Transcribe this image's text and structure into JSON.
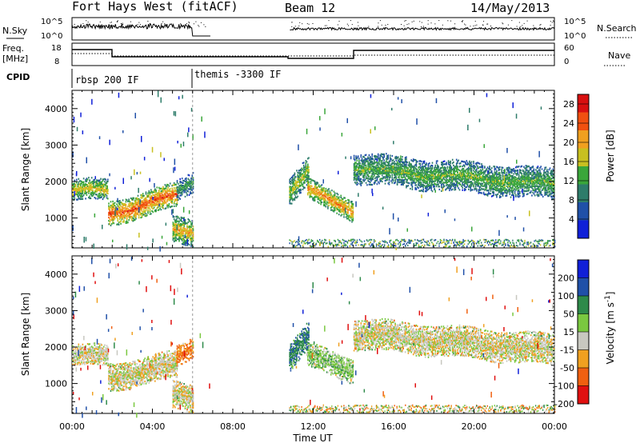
{
  "header": {
    "site": "Fort Hays West (fitACF)",
    "beam": "Beam 12",
    "date": "14/May/2013"
  },
  "top_panels": {
    "nsky_label": "N.Sky",
    "nsearch_label": "N.Search",
    "nsky_ticks": [
      "10^5",
      "10^0"
    ],
    "nsearch_ticks": [
      "10^5",
      "10^0"
    ],
    "freq_label_1": "Freq.",
    "freq_label_2": "[MHz]",
    "freq_ticks": [
      "18",
      "8"
    ],
    "nave_label": "Nave",
    "nave_ticks": [
      "60",
      "0"
    ],
    "cpid_label": "CPID",
    "cpid_segments": [
      {
        "label": "rbsp 200 IF",
        "start_hour": 0
      },
      {
        "label": "themis -3300 IF",
        "start_hour": 6
      }
    ]
  },
  "chart_data": [
    {
      "type": "heatmap",
      "title": "",
      "xlabel": "Time UT",
      "ylabel": "Slant Range [km]",
      "xlim": [
        0,
        24
      ],
      "ylim": [
        180,
        4500
      ],
      "x_tick_labels": [
        "00:00",
        "04:00",
        "08:00",
        "12:00",
        "16:00",
        "20:00",
        "00:00"
      ],
      "y_tick_labels": [
        "1000",
        "2000",
        "3000",
        "4000"
      ],
      "colorbar_label": "Power [dB]",
      "colorbar_ticks": [
        "4",
        "8",
        "12",
        "16",
        "20",
        "24",
        "28"
      ],
      "colorbar_range": [
        0,
        30
      ],
      "colors": [
        "#1020d8",
        "#2050a8",
        "#2e7c6a",
        "#3aa63a",
        "#c8c020",
        "#f0a020",
        "#f05010",
        "#d81010"
      ],
      "data_gaps_hours": [
        [
          6.0,
          6.1
        ],
        [
          6.9,
          10.8
        ]
      ],
      "bands": [
        {
          "name": "",
          "start": 0.0,
          "end": 1.8,
          "range_start": 1750,
          "range_end": 1750,
          "width": 200,
          "level": 18
        },
        {
          "name": "",
          "start": 1.8,
          "end": 5.2,
          "range_start": 1100,
          "range_end": 1600,
          "width": 220,
          "level": 25
        },
        {
          "name": "",
          "start": 5.2,
          "end": 6.0,
          "range_start": 1700,
          "range_end": 2000,
          "width": 180,
          "level": 12
        },
        {
          "name": "",
          "start": 5.0,
          "end": 6.0,
          "range_start": 650,
          "range_end": 600,
          "width": 250,
          "level": 20
        },
        {
          "name": "",
          "start": 10.8,
          "end": 11.8,
          "range_start": 1700,
          "range_end": 2300,
          "width": 250,
          "level": 16
        },
        {
          "name": "",
          "start": 11.7,
          "end": 14.0,
          "range_start": 1750,
          "range_end": 1200,
          "width": 200,
          "level": 22
        },
        {
          "name": "",
          "start": 14.0,
          "end": 24.0,
          "range_start": 2350,
          "range_end": 1900,
          "width": 300,
          "level": 14
        }
      ]
    },
    {
      "type": "heatmap",
      "title": "",
      "xlabel": "Time UT",
      "ylabel": "Slant Range [km]",
      "xlim": [
        0,
        24
      ],
      "ylim": [
        180,
        4500
      ],
      "x_tick_labels": [
        "00:00",
        "04:00",
        "08:00",
        "12:00",
        "16:00",
        "20:00",
        "00:00"
      ],
      "y_tick_labels": [
        "1000",
        "2000",
        "3000",
        "4000"
      ],
      "colorbar_label": "Velocity [m s^-1]",
      "colorbar_ticks": [
        "200",
        "100",
        "50",
        "15",
        "-15",
        "-50",
        "-100",
        "-200"
      ],
      "colorbar_range": [
        -250,
        250
      ],
      "colors": [
        "#1020d8",
        "#2050a8",
        "#2e8a4a",
        "#7ac840",
        "#c8c8c0",
        "#f0a020",
        "#f06010",
        "#e01010"
      ],
      "data_gaps_hours": [
        [
          6.0,
          6.1
        ],
        [
          6.9,
          10.8
        ]
      ],
      "bands": [
        {
          "name": "",
          "start": 0.0,
          "end": 1.8,
          "range_start": 1750,
          "range_end": 1750,
          "width": 200,
          "velocity": 0
        },
        {
          "name": "",
          "start": 1.8,
          "end": 5.2,
          "range_start": 1150,
          "range_end": 1500,
          "width": 250,
          "velocity": 0
        },
        {
          "name": "",
          "start": 5.2,
          "end": 6.0,
          "range_start": 1700,
          "range_end": 2000,
          "width": 200,
          "velocity": -60
        },
        {
          "name": "",
          "start": 5.0,
          "end": 6.0,
          "range_start": 650,
          "range_end": 600,
          "width": 250,
          "velocity": 0
        },
        {
          "name": "",
          "start": 10.8,
          "end": 11.8,
          "range_start": 1700,
          "range_end": 2300,
          "width": 250,
          "velocity": 90
        },
        {
          "name": "",
          "start": 11.7,
          "end": 14.0,
          "range_start": 1750,
          "range_end": 1350,
          "width": 220,
          "velocity": 30
        },
        {
          "name": "",
          "start": 14.0,
          "end": 24.0,
          "range_start": 2350,
          "range_end": 1900,
          "width": 320,
          "velocity": 0
        }
      ]
    }
  ]
}
